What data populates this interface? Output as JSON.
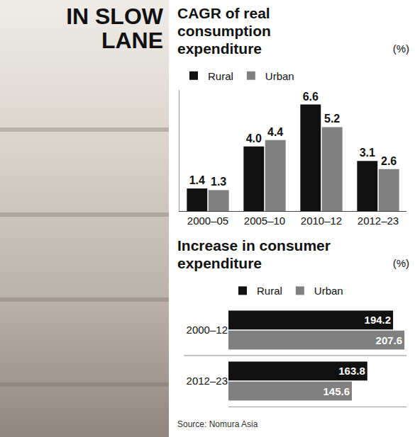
{
  "title": "IN SLOW LANE",
  "source": "Source: Nomura Asia",
  "chart_data": [
    {
      "type": "bar",
      "title": "CAGR of real consumption expenditure",
      "subtitle": "(%)",
      "categories": [
        "2000–05",
        "2005–10",
        "2010–12",
        "2012–23"
      ],
      "series": [
        {
          "name": "Rural",
          "color": "#111111",
          "values": [
            1.4,
            4.0,
            6.6,
            3.1
          ],
          "value_labels": [
            "1.4",
            "4.0",
            "6.6",
            "3.1"
          ]
        },
        {
          "name": "Urban",
          "color": "#808080",
          "values": [
            1.3,
            4.4,
            5.2,
            2.6
          ],
          "value_labels": [
            "1.3",
            "4.4",
            "5.2",
            "2.6"
          ]
        }
      ],
      "ylim": [
        0,
        7.5
      ],
      "tick_labels": "x",
      "grid": false,
      "legend": "top-left",
      "data_labels": true
    },
    {
      "type": "bar",
      "title": "Increase in consumer expenditure",
      "subtitle": "(%)",
      "orientation": "horizontal",
      "categories": [
        "2000–12",
        "2012–23"
      ],
      "series": [
        {
          "name": "Rural",
          "color": "#111111",
          "values": [
            194.2,
            163.8
          ]
        },
        {
          "name": "Urban",
          "color": "#808080",
          "values": [
            207.6,
            145.6
          ]
        }
      ],
      "xlim": [
        0,
        210
      ],
      "tick_labels": "y",
      "grid": false,
      "legend": "top-left",
      "data_labels": true
    }
  ]
}
